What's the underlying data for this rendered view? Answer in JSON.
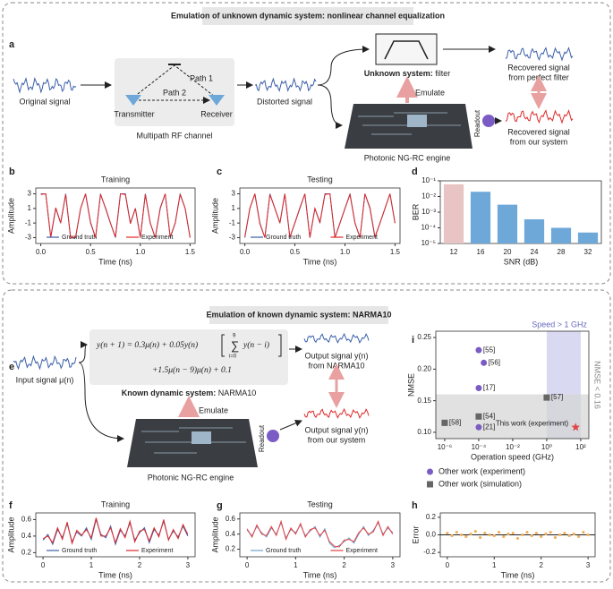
{
  "top": {
    "title": "Emulation of unknown dynamic system: nonlinear channel equalization",
    "panel_a": {
      "letter": "a",
      "original_signal": "Original signal",
      "path1": "Path 1",
      "path2": "Path 2",
      "transmitter": "Transmitter",
      "receiver": "Receiver",
      "channel": "Multipath RF channel",
      "distorted": "Distorted signal",
      "unknown_bold": "Unknown system:",
      "unknown_rest": " filter",
      "emulate": "Emulate",
      "engine": "Photonic NG-RC engine",
      "readout": "Readout",
      "recovered_perfect": [
        "Recovered signal",
        "from perfect filter"
      ],
      "recovered_ours": [
        "Recovered signal",
        "from our system"
      ]
    },
    "letters": {
      "b": "b",
      "c": "c",
      "d": "d"
    }
  },
  "bottom": {
    "title": "Emulation of known dynamic system: NARMA10",
    "panel_e": {
      "letter": "e",
      "equation": {
        "line1": "y(n + 1) = 0.3μ(n) + 0.05y(n)",
        "sum": "∑",
        "sum_top": "9",
        "sum_bottom": "i=0",
        "term": "y(n − i)",
        "line2": "+1.5μ(n − 9)μ(n) + 0.1"
      },
      "known_bold": "Known dynamic system:",
      "known_rest": " NARMA10",
      "input": "Input signal μ(n)",
      "emulate": "Emulate",
      "engine": "Photonic NG-RC engine",
      "readout": "Readout",
      "output_narma": [
        "Output signal y(n)",
        "from NARMA10"
      ],
      "output_ours": [
        "Output signal y(n)",
        "from our system"
      ]
    },
    "letters": {
      "f": "f",
      "g": "g",
      "h": "h",
      "i": "i"
    }
  },
  "chart_data": [
    {
      "type": "line",
      "title": "Training",
      "x_label": "Time (ns)",
      "y_label": "Amplitude",
      "x": [
        0,
        0.05,
        0.1,
        0.15,
        0.2,
        0.25,
        0.3,
        0.35,
        0.4,
        0.45,
        0.5,
        0.55,
        0.6,
        0.65,
        0.7,
        0.75,
        0.8,
        0.85,
        0.9,
        0.95,
        1,
        1.05,
        1.1,
        1.15,
        1.2,
        1.25,
        1.3,
        1.35,
        1.4,
        1.45,
        1.5
      ],
      "series": [
        {
          "name": "Ground truth",
          "color": "#3a5fa8",
          "values": [
            3,
            3,
            -3,
            1,
            -1,
            3,
            -3,
            -3,
            1,
            3,
            -1,
            -3,
            3,
            1,
            -1,
            -3,
            3,
            3,
            -1,
            1,
            -3,
            3,
            -1,
            -3,
            1,
            3,
            -3,
            -1,
            3,
            1,
            -3
          ]
        },
        {
          "name": "Experiment",
          "color": "#e02828",
          "values": [
            2.9,
            3,
            -2.9,
            1.1,
            -1,
            2.9,
            -3,
            -2.9,
            1,
            3,
            -0.9,
            -3,
            2.9,
            1.1,
            -1,
            -2.9,
            3,
            2.9,
            -1.1,
            1,
            -3,
            2.9,
            -1,
            -3,
            1.1,
            3,
            -2.9,
            -1,
            2.9,
            1,
            -3
          ]
        }
      ],
      "xlim": [
        -0.05,
        1.55
      ],
      "ylim": [
        -3.8,
        3.8
      ],
      "xticks": [
        {
          "value": 0,
          "label": "0.0"
        },
        0.5,
        {
          "value": 1,
          "label": "1.0"
        },
        1.5
      ],
      "yticks": [
        3,
        1,
        -1,
        -3
      ],
      "legend": "lower center"
    },
    {
      "type": "line",
      "title": "Testing",
      "x_label": "Time (ns)",
      "y_label": "Amplitude",
      "x": [
        0,
        0.05,
        0.1,
        0.15,
        0.2,
        0.25,
        0.3,
        0.35,
        0.4,
        0.45,
        0.5,
        0.55,
        0.6,
        0.65,
        0.7,
        0.75,
        0.8,
        0.85,
        0.9,
        0.95,
        1,
        1.05,
        1.1,
        1.15,
        1.2,
        1.25,
        1.3,
        1.35,
        1.4,
        1.45,
        1.5
      ],
      "series": [
        {
          "name": "Ground truth",
          "color": "#3a5fa8",
          "values": [
            -3,
            1,
            3,
            -1,
            -3,
            3,
            1,
            -1,
            3,
            -3,
            -1,
            1,
            3,
            -3,
            1,
            -1,
            3,
            3,
            -3,
            -1,
            1,
            3,
            -1,
            -3,
            3,
            1,
            -3,
            -1,
            1,
            3,
            -1
          ]
        },
        {
          "name": "Experiment",
          "color": "#e02828",
          "values": [
            -2.9,
            1,
            3,
            -1.1,
            -3,
            2.9,
            1,
            -1,
            3,
            -2.9,
            -1,
            1.1,
            3,
            -3,
            1,
            -0.9,
            2.9,
            3,
            -3,
            -1,
            1,
            2.9,
            -1,
            -3,
            3,
            1.1,
            -2.9,
            -1,
            1,
            3,
            -1
          ]
        }
      ],
      "xlim": [
        -0.05,
        1.55
      ],
      "ylim": [
        -3.8,
        3.8
      ],
      "xticks": [
        {
          "value": 0,
          "label": "0.0"
        },
        0.5,
        {
          "value": 1,
          "label": "1.0"
        },
        1.5
      ],
      "yticks": [
        3,
        1,
        -1,
        -3
      ],
      "legend": "lower center"
    },
    {
      "type": "bar",
      "x_label": "SNR (dB)",
      "y_label": "BER",
      "log_y": true,
      "categories": [
        "12",
        "16",
        "20",
        "24",
        "28",
        "32"
      ],
      "values": [
        0.06,
        0.02,
        0.003,
        0.00035,
        0.0001,
        5e-05
      ],
      "colors": [
        "#e8c4c4",
        "#6ea8d8",
        "#6ea8d8",
        "#6ea8d8",
        "#6ea8d8",
        "#6ea8d8"
      ],
      "ylim": [
        1e-05,
        0.1
      ],
      "yticks": [
        {
          "value": 0.1,
          "label": "10⁻¹"
        },
        {
          "value": 0.01,
          "label": "10⁻²"
        },
        {
          "value": 0.001,
          "label": "10⁻³"
        },
        {
          "value": 0.0001,
          "label": "10⁻⁴"
        },
        {
          "value": 1e-05,
          "label": "10⁻⁵"
        }
      ]
    },
    {
      "type": "scatter",
      "x_label": "Operation speed (GHz)",
      "y_label": "NMSE",
      "log_x": true,
      "series": [
        {
          "name": "Other work (experiment)",
          "color": "#7b5cc4",
          "marker": "circle",
          "x": [
            0.0001,
            0.0002,
            0.0001,
            0.0001
          ],
          "values": [
            0.23,
            0.21,
            0.17,
            0.108
          ],
          "point_labels": [
            "[55]",
            "[56]",
            "[17]",
            "[21]"
          ]
        },
        {
          "name": "Other work (simulation)",
          "color": "#666666",
          "marker": "square",
          "x": [
            1,
            0.0001,
            1e-06
          ],
          "values": [
            0.155,
            0.125,
            0.115
          ],
          "point_labels": [
            "[57]",
            "[54]",
            "[58]"
          ]
        },
        {
          "name": "This work (experiment)",
          "color": "#e04848",
          "marker": "star",
          "x": [
            50
          ],
          "values": [
            0.108
          ],
          "legend": false
        }
      ],
      "regions": [
        {
          "label": "Speed > 1 GHz",
          "color": "#c9c9ec",
          "x": [
            1,
            100
          ]
        },
        {
          "label": "NMSE < 0.16",
          "color": "#d4d4d4",
          "y": [
            0.09,
            0.16
          ]
        }
      ],
      "xlim": [
        3e-07,
        300
      ],
      "ylim": [
        0.09,
        0.26
      ],
      "xticks": [
        {
          "value": 1e-06,
          "label": "10⁻⁶"
        },
        {
          "value": 0.0001,
          "label": "10⁻⁴"
        },
        {
          "value": 0.01,
          "label": "10⁻²"
        },
        {
          "value": 1,
          "label": "10⁰"
        },
        {
          "value": 100,
          "label": "10²"
        }
      ],
      "yticks": [
        {
          "value": 0.1,
          "label": "0.10"
        },
        0.15,
        {
          "value": 0.2,
          "label": "0.20"
        },
        0.25
      ]
    },
    {
      "type": "line",
      "title": "Training",
      "x_label": "Time (ns)",
      "y_label": "Amplitude",
      "x": [
        0,
        0.1,
        0.2,
        0.3,
        0.4,
        0.5,
        0.6,
        0.7,
        0.8,
        0.9,
        1,
        1.1,
        1.2,
        1.3,
        1.4,
        1.5,
        1.6,
        1.7,
        1.8,
        1.9,
        2,
        2.1,
        2.2,
        2.3,
        2.4,
        2.5,
        2.6,
        2.7,
        2.8,
        2.9,
        3
      ],
      "series": [
        {
          "name": "Ground truth",
          "color": "#3a5fa8",
          "values": [
            0.35,
            0.42,
            0.3,
            0.48,
            0.38,
            0.55,
            0.33,
            0.45,
            0.4,
            0.5,
            0.36,
            0.6,
            0.42,
            0.38,
            0.52,
            0.3,
            0.47,
            0.4,
            0.56,
            0.35,
            0.44,
            0.5,
            0.32,
            0.48,
            0.41,
            0.58,
            0.36,
            0.46,
            0.39,
            0.52,
            0.4
          ]
        },
        {
          "name": "Experiment",
          "color": "#e02828",
          "values": [
            0.37,
            0.4,
            0.32,
            0.5,
            0.36,
            0.57,
            0.31,
            0.47,
            0.41,
            0.48,
            0.38,
            0.62,
            0.4,
            0.4,
            0.5,
            0.32,
            0.49,
            0.38,
            0.58,
            0.33,
            0.46,
            0.48,
            0.34,
            0.5,
            0.39,
            0.6,
            0.35,
            0.48,
            0.37,
            0.54,
            0.42
          ]
        }
      ],
      "xlim": [
        -0.15,
        3.15
      ],
      "ylim": [
        0.15,
        0.68
      ],
      "xticks": [
        0,
        1,
        2,
        3
      ],
      "yticks": [
        0.2,
        0.4,
        0.6
      ],
      "legend": "lower center"
    },
    {
      "type": "line",
      "title": "Testing",
      "x_label": "Time (ns)",
      "y_label": "Amplitude",
      "x": [
        0,
        0.1,
        0.2,
        0.3,
        0.4,
        0.5,
        0.6,
        0.7,
        0.8,
        0.9,
        1,
        1.1,
        1.2,
        1.3,
        1.4,
        1.5,
        1.6,
        1.7,
        1.8,
        1.9,
        2,
        2.1,
        2.2,
        2.3,
        2.4,
        2.5,
        2.6,
        2.7,
        2.8,
        2.9,
        3
      ],
      "series": [
        {
          "name": "Ground truth",
          "color": "#6f9fd0",
          "values": [
            0.45,
            0.38,
            0.5,
            0.42,
            0.36,
            0.48,
            0.4,
            0.55,
            0.35,
            0.46,
            0.42,
            0.52,
            0.38,
            0.44,
            0.5,
            0.36,
            0.47,
            0.28,
            0.22,
            0.25,
            0.3,
            0.35,
            0.28,
            0.4,
            0.5,
            0.38,
            0.45,
            0.55,
            0.4,
            0.48,
            0.42
          ]
        },
        {
          "name": "Experiment",
          "color": "#e84040",
          "values": [
            0.47,
            0.36,
            0.52,
            0.4,
            0.38,
            0.5,
            0.38,
            0.57,
            0.33,
            0.48,
            0.4,
            0.54,
            0.36,
            0.46,
            0.48,
            0.38,
            0.45,
            0.3,
            0.24,
            0.23,
            0.32,
            0.33,
            0.3,
            0.42,
            0.48,
            0.4,
            0.43,
            0.57,
            0.38,
            0.5,
            0.4
          ]
        }
      ],
      "xlim": [
        -0.15,
        3.15
      ],
      "ylim": [
        0.1,
        0.68
      ],
      "xticks": [
        0,
        1,
        2,
        3
      ],
      "yticks": [
        0.2,
        0.4,
        0.6
      ],
      "legend": "lower center"
    },
    {
      "type": "scatter",
      "x_label": "Time (ns)",
      "y_label": "Error",
      "x": [
        0,
        0.1,
        0.2,
        0.3,
        0.4,
        0.5,
        0.6,
        0.7,
        0.8,
        0.9,
        1,
        1.1,
        1.2,
        1.3,
        1.4,
        1.5,
        1.6,
        1.7,
        1.8,
        1.9,
        2,
        2.1,
        2.2,
        2.3,
        2.4,
        2.5,
        2.6,
        2.7,
        2.8,
        2.9,
        3
      ],
      "series": [
        {
          "color": "#f0b060",
          "values": [
            0.02,
            -0.01,
            0.03,
            0,
            -0.02,
            0.01,
            0.04,
            -0.03,
            0.02,
            0,
            -0.01,
            0.03,
            -0.02,
            0.01,
            0.02,
            -0.04,
            0,
            0.03,
            -0.01,
            0.02,
            -0.02,
            0.01,
            0.03,
            -0.03,
            0,
            0.02,
            -0.01,
            0.01,
            -0.02,
            0.03,
            0
          ]
        }
      ],
      "xlim": [
        -0.15,
        3.15
      ],
      "ylim": [
        -0.25,
        0.25
      ],
      "xticks": [
        0,
        1,
        2,
        3
      ],
      "yticks": [
        -0.2,
        {
          "value": 0,
          "label": "0.0"
        },
        0.2
      ]
    }
  ]
}
